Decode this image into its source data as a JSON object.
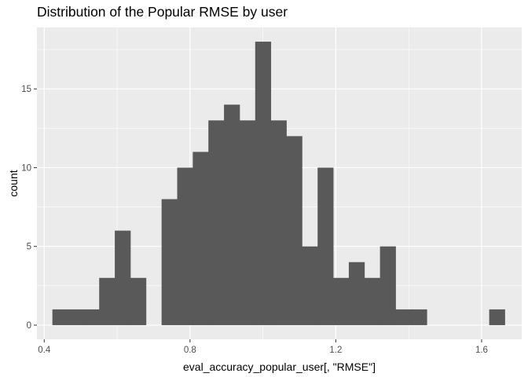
{
  "chart_data": {
    "type": "bar",
    "subtype": "histogram",
    "title": "Distribution of the Popular RMSE by user",
    "xlabel": "eval_accuracy_popular_user[, \"RMSE\"]",
    "ylabel": "count",
    "xlim": [
      0.38,
      1.71
    ],
    "ylim": [
      -0.9,
      18.9
    ],
    "x_ticks": [
      0.4,
      0.8,
      1.2,
      1.6
    ],
    "x_tick_labels": [
      "0.4",
      "0.8",
      "1.2",
      "1.6"
    ],
    "y_ticks": [
      0,
      5,
      10,
      15
    ],
    "y_tick_labels": [
      "0",
      "5",
      "10",
      "15"
    ],
    "bin_width": 0.0428,
    "bin_centers": [
      0.4438,
      0.4866,
      0.5294,
      0.5722,
      0.615,
      0.6578,
      0.7006,
      0.7434,
      0.7862,
      0.829,
      0.8718,
      0.9146,
      0.9574,
      1.0002,
      1.043,
      1.0858,
      1.1286,
      1.1714,
      1.2142,
      1.257,
      1.2998,
      1.3426,
      1.3854,
      1.4282,
      1.471,
      1.5138,
      1.5566,
      1.5994,
      1.6422
    ],
    "counts": [
      1,
      1,
      1,
      3,
      6,
      3,
      0,
      8,
      10,
      11,
      13,
      14,
      13,
      18,
      13,
      12,
      5,
      10,
      3,
      4,
      3,
      5,
      1,
      1,
      0,
      0,
      0,
      0,
      1
    ],
    "bar_color": "#595959",
    "panel_color": "#ebebeb",
    "grid": true,
    "legend": "none"
  }
}
